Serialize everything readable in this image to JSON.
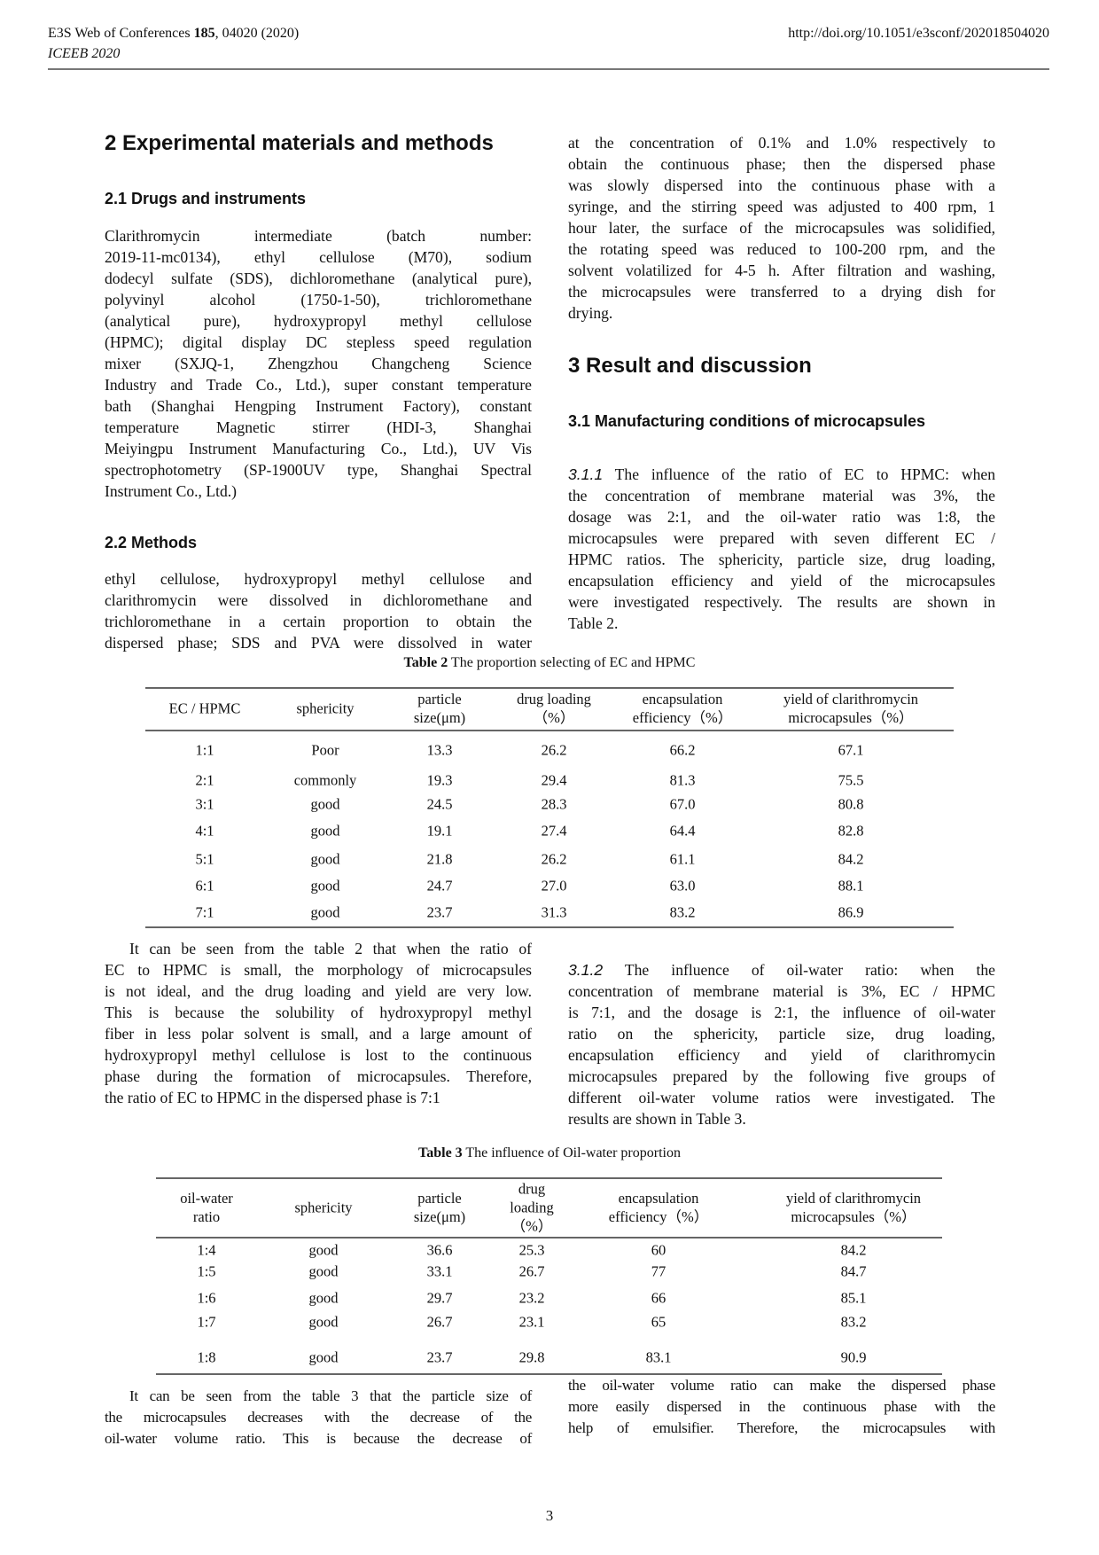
{
  "header": {
    "journal_prefix": "E3S Web of Conferences ",
    "volume": "185",
    "article": ", 04020 (2020)",
    "conference": "ICEEB 2020",
    "doi": "http://doi.org/10.1051/e3sconf/202018504020"
  },
  "sections": {
    "s2_title": "2 Experimental materials and methods",
    "s21_title": "2.1 Drugs and instruments",
    "s22_title": "2.2 Methods",
    "s3_title": "3 Result and discussion",
    "s31_title": "3.1 Manufacturing conditions of microcapsules"
  },
  "paragraphs": {
    "drugs": {
      "lines": [
        "Clarithromycin intermediate (batch number:",
        "2019-11-mc0134), ethyl cellulose (M70), sodium",
        "dodecyl sulfate (SDS), dichloromethane (analytical pure),",
        "polyvinyl alcohol (1750-1-50), trichloromethane",
        "(analytical pure), hydroxypropyl methyl cellulose",
        "(HPMC); digital display DC stepless speed regulation",
        "mixer (SXJQ-1, Zhengzhou Changcheng Science",
        "Industry and Trade Co., Ltd.), super constant temperature",
        "bath (Shanghai Hengping Instrument Factory), constant",
        "temperature Magnetic stirrer (HDI-3, Shanghai",
        "Meiyingpu Instrument Manufacturing Co., Ltd.), UV Vis",
        "spectrophotometry (SP-1900UV type, Shanghai Spectral",
        "Instrument Co., Ltd.)"
      ]
    },
    "methods": {
      "lines": [
        "ethyl cellulose, hydroxypropyl methyl cellulose and",
        "clarithromycin were dissolved in dichloromethane and",
        "trichloromethane in a certain proportion to obtain the",
        "dispersed phase; SDS and PVA were dissolved in water"
      ]
    },
    "methods_cont": {
      "lines": [
        "at the concentration of 0.1% and 1.0% respectively to",
        "obtain the continuous phase; then the dispersed phase",
        "was slowly dispersed into the continuous phase with a",
        "syringe, and the stirring speed was adjusted to 400 rpm, 1",
        "hour later, the surface of the microcapsules was solidified,",
        "the rotating speed was reduced to 100-200 rpm, and the",
        "solvent volatilized for 4-5 h. After filtration and washing,",
        "the microcapsules were transferred to a drying dish for",
        "drying."
      ]
    },
    "p311": {
      "label": "3.1.1",
      "lines": [
        " The influence of the ratio of EC to HPMC: when",
        "the concentration of membrane material was 3%, the",
        "dosage was 2:1, and the oil-water ratio was 1:8, the",
        "microcapsules were prepared with seven different EC /",
        "HPMC ratios. The sphericity, particle size, drug loading,",
        "encapsulation efficiency and yield of the microcapsules",
        "were investigated respectively. The results are shown in",
        "Table 2."
      ]
    },
    "table2_discussion": {
      "lines": [
        "It can be seen from the table 2 that when the ratio of",
        "EC to HPMC is small, the morphology of microcapsules",
        "is not ideal, and the drug loading and yield are very low.",
        "This is because the solubility of hydroxypropyl methyl",
        "fiber in less polar solvent is small, and a large amount of",
        "hydroxypropyl methyl cellulose is lost to the continuous",
        "phase during the formation of microcapsules. Therefore,",
        "the ratio of EC to HPMC in the dispersed phase is 7:1"
      ]
    },
    "p312": {
      "label": "3.1.2",
      "lines": [
        " The influence of oil-water ratio: when the",
        "concentration of membrane material is 3%, EC / HPMC",
        "is 7:1, and the dosage is 2:1, the influence of oil-water",
        "ratio on the sphericity, particle size, drug loading,",
        "encapsulation efficiency and yield of clarithromycin",
        "microcapsules prepared by the following five groups of",
        "different oil-water volume ratios were investigated. The",
        "results are shown in Table 3."
      ]
    },
    "table3_discussion": {
      "lines": [
        "It can be seen from the table 3 that the particle size of",
        "the microcapsules decreases with the decrease of the",
        "oil-water volume ratio. This is because the decrease of"
      ]
    },
    "table3_discussion_cont": {
      "lines": [
        "the oil-water volume ratio can make the dispersed phase",
        "more easily dispersed in the continuous phase with the",
        "help of emulsifier. Therefore, the microcapsules with"
      ]
    }
  },
  "table2": {
    "caption_label": "Table 2",
    "caption_text": " The proportion selecting of EC and HPMC",
    "headers": [
      [
        "EC / HPMC"
      ],
      [
        "sphericity"
      ],
      [
        "particle",
        "size(μm)"
      ],
      [
        "drug loading",
        "（%）"
      ],
      [
        "encapsulation",
        "efficiency（%）"
      ],
      [
        "yield of clarithromycin",
        "microcapsules（%）"
      ]
    ],
    "rows": [
      [
        "1:1",
        "Poor",
        "13.3",
        "26.2",
        "66.2",
        "67.1"
      ],
      [
        "2:1",
        "commonly",
        "19.3",
        "29.4",
        "81.3",
        "75.5"
      ],
      [
        "3:1",
        "good",
        "24.5",
        "28.3",
        "67.0",
        "80.8"
      ],
      [
        "4:1",
        "good",
        "19.1",
        "27.4",
        "64.4",
        "82.8"
      ],
      [
        "5:1",
        "good",
        "21.8",
        "26.2",
        "61.1",
        "84.2"
      ],
      [
        "6:1",
        "good",
        "24.7",
        "27.0",
        "63.0",
        "88.1"
      ],
      [
        "7:1",
        "good",
        "23.7",
        "31.3",
        "83.2",
        "86.9"
      ]
    ]
  },
  "table3": {
    "caption_label": "Table 3",
    "caption_text": " The influence of Oil-water proportion",
    "headers": [
      [
        "oil-water",
        "ratio"
      ],
      [
        "sphericity"
      ],
      [
        "particle",
        "size(μm)"
      ],
      [
        "drug",
        "loading",
        "（%）"
      ],
      [
        "encapsulation",
        "efficiency（%）"
      ],
      [
        "yield of clarithromycin",
        "microcapsules（%）"
      ]
    ],
    "rows": [
      [
        "1:4",
        "good",
        "36.6",
        "25.3",
        "60",
        "84.2"
      ],
      [
        "1:5",
        "good",
        "33.1",
        "26.7",
        "77",
        "84.7"
      ],
      [
        "1:6",
        "good",
        "29.7",
        "23.2",
        "66",
        "85.1"
      ],
      [
        "1:7",
        "good",
        "26.7",
        "23.1",
        "65",
        "83.2"
      ],
      [
        "1:8",
        "good",
        "23.7",
        "29.8",
        "83.1",
        "90.9"
      ]
    ]
  },
  "page_number": "3"
}
